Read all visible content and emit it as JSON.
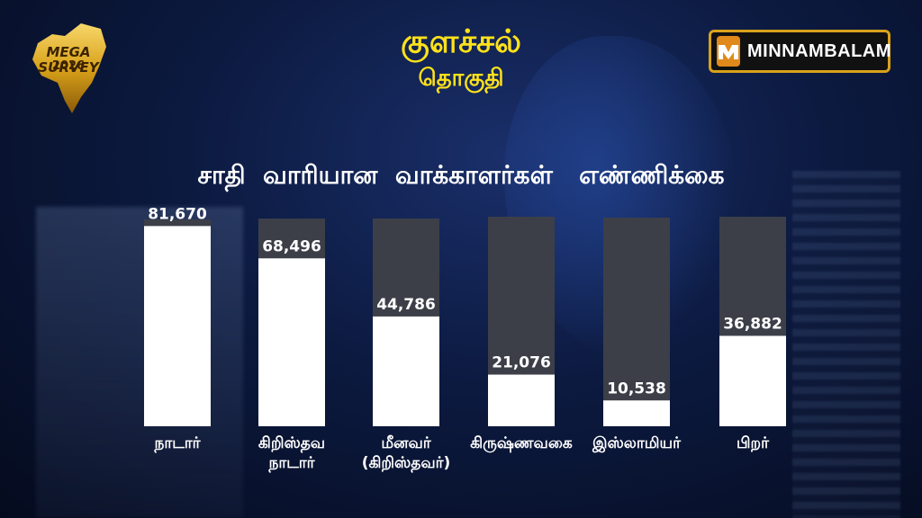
{
  "header": {
    "title": "குளச்சல்",
    "subtitle": "தொகுதி",
    "logo_text": "MEGA SURVEY",
    "logo_year": "2026",
    "brand": "MINNAMBALAM"
  },
  "colors": {
    "title_yellow": "#ffe21a",
    "bar_fill": "#ffffff",
    "bar_track": "#3c3f48",
    "brand_border": "#d9a21a",
    "brand_mark": "#e08a1c"
  },
  "chart_data": {
    "type": "bar",
    "title": "சாதி  வாரியான  வாக்காளர்கள்   எண்ணிக்கை",
    "categories": [
      "நாடார்",
      "கிறிஸ்தவ\nநாடார்",
      "மீனவர்\n(கிறிஸ்தவர்)",
      "கிருஷ்ணவகை",
      "இஸ்லாமியர்",
      "பிறர்"
    ],
    "values": [
      81670,
      68496,
      44786,
      21076,
      10538,
      36882
    ],
    "value_labels": [
      "81,670",
      "68,496",
      "44,786",
      "21,076",
      "10,538",
      "36,882"
    ],
    "ylim": [
      0,
      100000
    ],
    "grid": false,
    "legend": "none"
  }
}
